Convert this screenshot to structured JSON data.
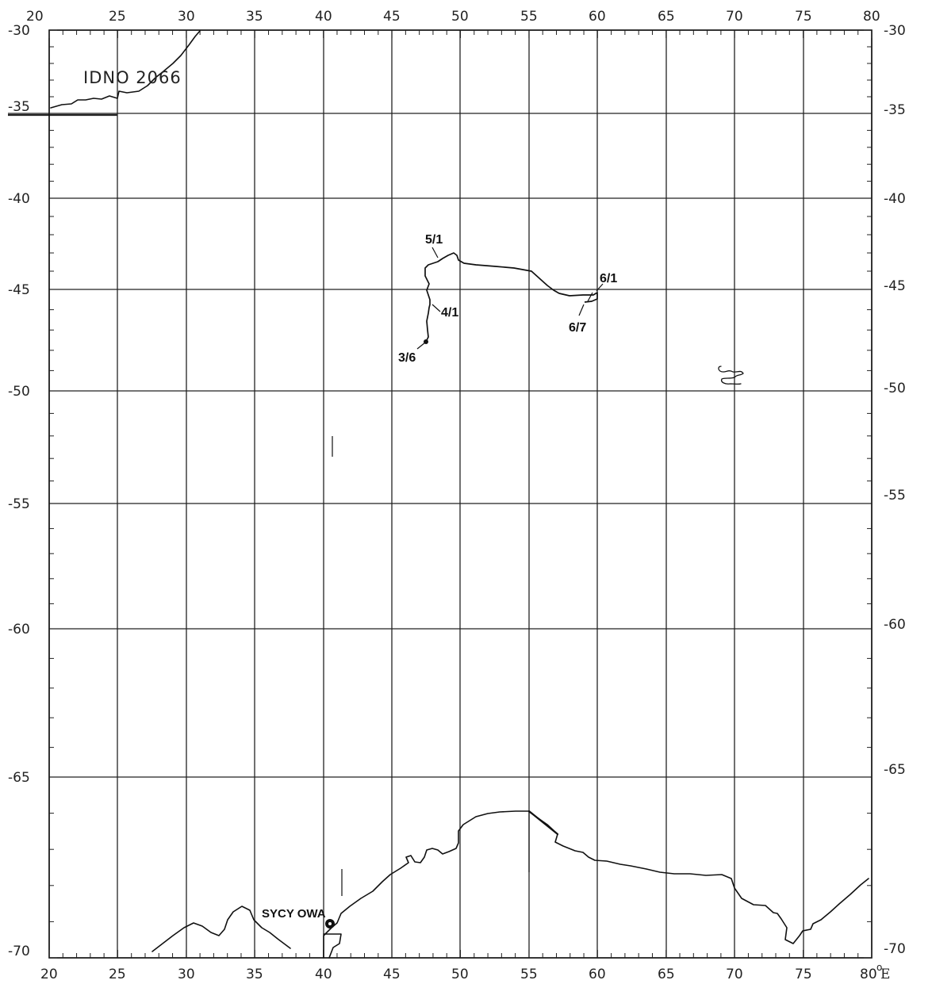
{
  "map": {
    "title": "IDNO 2066",
    "lon_range": [
      20,
      80
    ],
    "lat_range": [
      -70,
      -30
    ],
    "lon_ticks_top": [
      "20",
      "25",
      "30",
      "35",
      "40",
      "45",
      "50",
      "55",
      "60",
      "65",
      "70",
      "75",
      "80"
    ],
    "lon_ticks_bottom": [
      "20",
      "25",
      "30",
      "35",
      "40",
      "45",
      "50",
      "55",
      "60",
      "65",
      "70",
      "75",
      "80"
    ],
    "lat_ticks_left": [
      "-30",
      "-35",
      "-40",
      "-45",
      "-50",
      "-55",
      "-60",
      "-65",
      "-70"
    ],
    "lat_ticks_right": [
      "-30",
      "-35",
      "-40",
      "-45",
      "-50",
      "-55",
      "-60",
      "-65",
      "-70"
    ],
    "lon_unit": "°E",
    "drift_track": {
      "labels": [
        {
          "text": "3/6"
        },
        {
          "text": "4/1"
        },
        {
          "text": "5/1"
        },
        {
          "text": "6/1"
        },
        {
          "text": "6/7"
        }
      ]
    },
    "station": {
      "name": "SYCY OWA",
      "lon": 40.3,
      "lat": -69.0
    },
    "colors": {
      "ink": "#111111",
      "background": "#ffffff"
    }
  }
}
